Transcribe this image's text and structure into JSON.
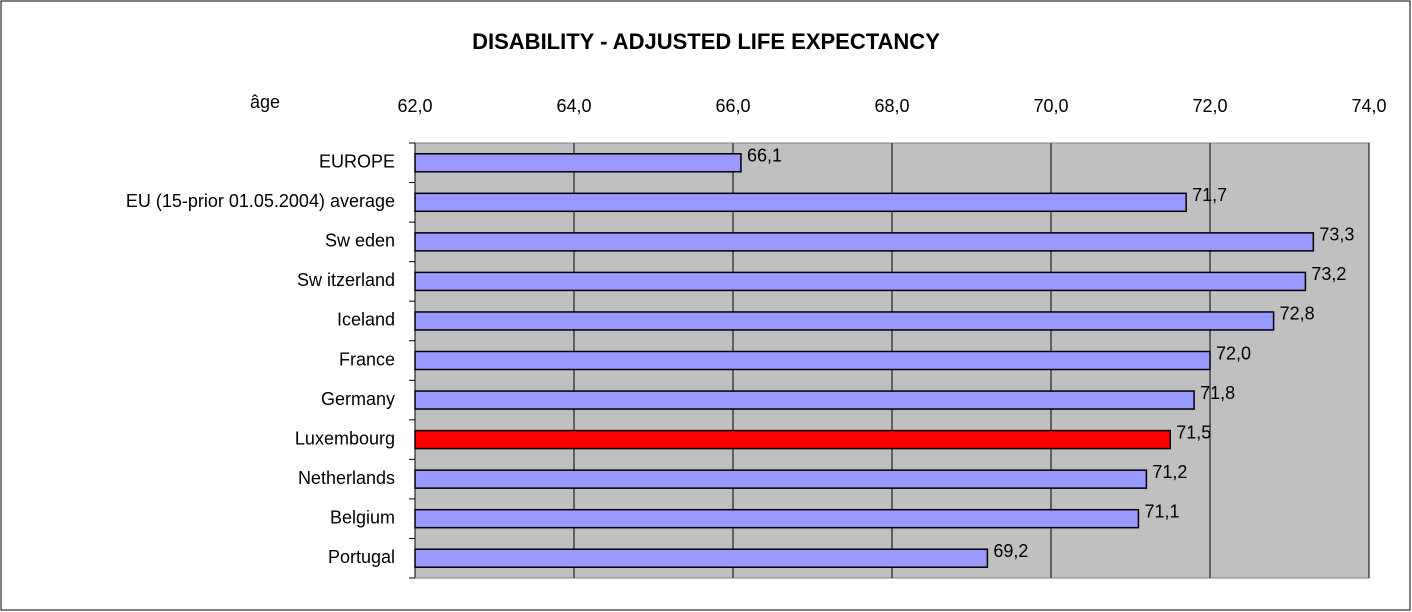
{
  "chart_data": {
    "type": "barh",
    "title": "DISABILITY - ADJUSTED LIFE EXPECTANCY",
    "x_label": "âge",
    "categories": [
      "EUROPE",
      "EU (15-prior 01.05.2004) average",
      "Sw eden",
      "Sw itzerland",
      "Iceland",
      "France",
      "Germany",
      "Luxembourg",
      "Netherlands",
      "Belgium",
      "Portugal"
    ],
    "values": [
      66.1,
      71.7,
      73.3,
      73.2,
      72.8,
      72.0,
      71.8,
      71.5,
      71.2,
      71.1,
      69.2
    ],
    "value_labels": [
      "66,1",
      "71,7",
      "73,3",
      "73,2",
      "72,8",
      "72,0",
      "71,8",
      "71,5",
      "71,2",
      "71,1",
      "69,2"
    ],
    "colors": [
      "#9999ff",
      "#9999ff",
      "#9999ff",
      "#9999ff",
      "#9999ff",
      "#9999ff",
      "#9999ff",
      "#ff0000",
      "#9999ff",
      "#9999ff",
      "#9999ff"
    ],
    "xlim": [
      62,
      74
    ],
    "xticks": [
      {
        "value": 62,
        "label": "62,0"
      },
      {
        "value": 64,
        "label": "64,0"
      },
      {
        "value": 66,
        "label": "66,0"
      },
      {
        "value": 68,
        "label": "68,0"
      },
      {
        "value": 70,
        "label": "70,0"
      },
      {
        "value": 72,
        "label": "72,0"
      },
      {
        "value": 74,
        "label": "74,0"
      }
    ],
    "grid": true,
    "plot_background": "#c0c0c0"
  }
}
